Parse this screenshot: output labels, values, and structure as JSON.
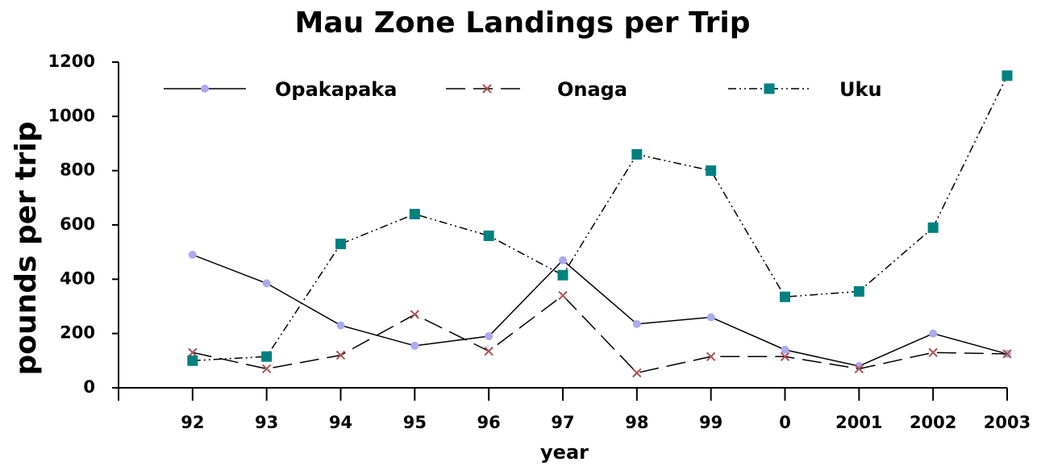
{
  "chart_data": {
    "type": "line",
    "title": "Mau Zone Landings per Trip",
    "x_label": "year",
    "y_label": "pounds per trip",
    "categories": [
      "92",
      "93",
      "94",
      "95",
      "96",
      "97",
      "98",
      "99",
      "0",
      "2001",
      "2002",
      "2003"
    ],
    "ylim": [
      0,
      1200
    ],
    "yticks": [
      0,
      200,
      400,
      600,
      800,
      1000,
      1200
    ],
    "legend": "top",
    "series": [
      {
        "name": "Opakapaka",
        "color": "#aaaaee",
        "marker": "circle",
        "dash": "none",
        "values": [
          490,
          385,
          230,
          155,
          190,
          470,
          235,
          260,
          140,
          80,
          200,
          125
        ]
      },
      {
        "name": "Onaga",
        "color": "#b05050",
        "marker": "x",
        "dash": "24,10",
        "values": [
          130,
          70,
          120,
          270,
          135,
          340,
          55,
          115,
          115,
          70,
          130,
          125
        ]
      },
      {
        "name": "Uku",
        "color": "#008080",
        "marker": "square",
        "dash": "10,4,2,4,2,4",
        "values": [
          100,
          115,
          530,
          640,
          560,
          415,
          860,
          800,
          335,
          355,
          590,
          1150
        ]
      }
    ]
  }
}
